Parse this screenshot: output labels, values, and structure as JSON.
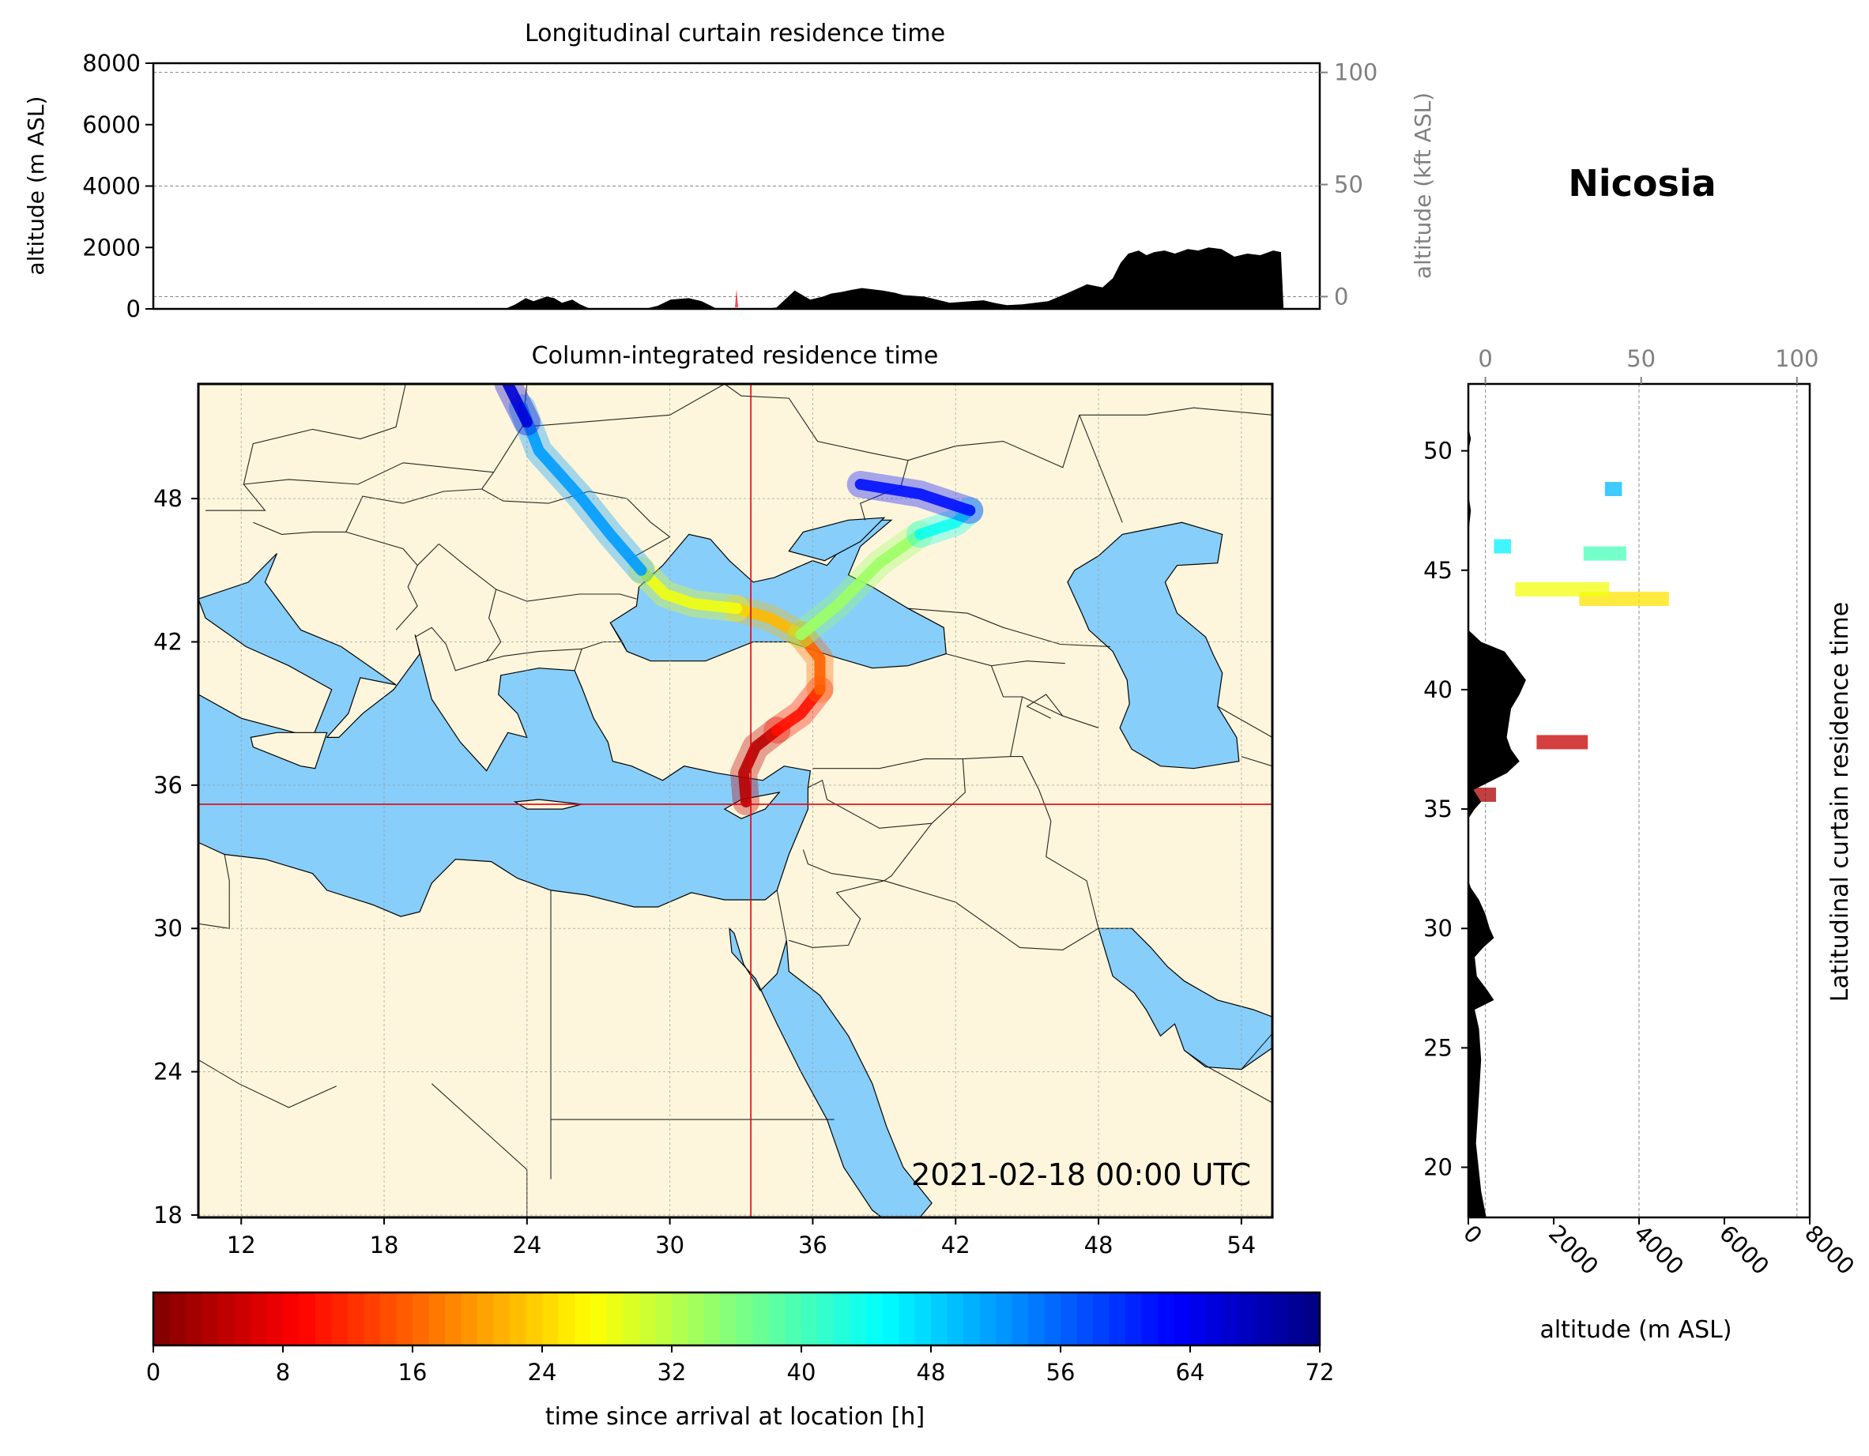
{
  "station": "Nicosia",
  "timestamp": "2021-02-18 00:00 UTC",
  "colors": {
    "ocean": "#87cefa",
    "land": "#fdf6dc",
    "terrain": "#000000",
    "marker": "#e8000b",
    "label_secondary": "#808080"
  },
  "chart_data": [
    {
      "id": "longitudinal-curtain",
      "type": "area",
      "title": "Longitudinal curtain residence time",
      "ylabel": "altitude (m ASL)",
      "ylabel_right": "altitude (kft ASL)",
      "ylim": [
        0,
        8000
      ],
      "yticks": [
        "0",
        "2000",
        "4000",
        "6000",
        "8000"
      ],
      "yticks_right": [
        "0",
        "50",
        "100"
      ],
      "xlim": [
        10.2,
        55.3
      ],
      "terrain": {
        "x": [
          10.2,
          23.8,
          24.2,
          24.6,
          24.9,
          25.4,
          25.7,
          26.0,
          26.4,
          26.7,
          27.1,
          29.2,
          29.7,
          30.2,
          30.9,
          31.4,
          32.0,
          32.5,
          33.2,
          33.9,
          34.3,
          35.0,
          35.6,
          36.1,
          36.4,
          36.8,
          37.2,
          37.6,
          38.4,
          38.9,
          39.2,
          40.0,
          40.5,
          41.0,
          41.8,
          42.3,
          42.7,
          43.2,
          43.8,
          44.3,
          44.8,
          45.5,
          46.3,
          46.9,
          47.3,
          47.6,
          47.9,
          48.3,
          48.6,
          48.9,
          49.3,
          49.7,
          50.2,
          50.6,
          51.0,
          51.5,
          52.0,
          52.5,
          53.0,
          53.5,
          53.8,
          53.9,
          55.3
        ],
        "y": [
          0,
          0,
          150,
          350,
          250,
          400,
          350,
          200,
          300,
          150,
          0,
          0,
          100,
          300,
          350,
          250,
          0,
          0,
          0,
          0,
          50,
          600,
          300,
          400,
          500,
          550,
          620,
          680,
          600,
          520,
          450,
          400,
          300,
          200,
          250,
          280,
          200,
          120,
          150,
          200,
          250,
          500,
          800,
          700,
          1000,
          1500,
          1800,
          1900,
          1750,
          1850,
          1900,
          1800,
          1950,
          1900,
          2000,
          1950,
          1700,
          1800,
          1750,
          1900,
          1850,
          0,
          0
        ]
      },
      "gridlines_m": [
        400,
        4000,
        7700
      ]
    },
    {
      "id": "column-integrated-map",
      "type": "heatmap",
      "title": "Column-integrated residence time",
      "xlim": [
        10.2,
        55.3
      ],
      "ylim": [
        17.9,
        52.8
      ],
      "xticks": [
        "12",
        "18",
        "24",
        "30",
        "36",
        "42",
        "48",
        "54"
      ],
      "yticks": [
        "18",
        "24",
        "30",
        "36",
        "42",
        "48"
      ],
      "release_point": {
        "lon": 33.4,
        "lat": 35.2
      },
      "grid": true,
      "trajectory_bands": [
        {
          "time_h": 4,
          "points": [
            [
              33.2,
              35.3
            ],
            [
              33.1,
              36.5
            ],
            [
              33.6,
              37.6
            ],
            [
              34.5,
              38.3
            ]
          ]
        },
        {
          "time_h": 10,
          "points": [
            [
              34.5,
              38.3
            ],
            [
              35.5,
              39.0
            ],
            [
              36.3,
              40.0
            ]
          ]
        },
        {
          "time_h": 16,
          "points": [
            [
              36.3,
              40.0
            ],
            [
              36.3,
              41.3
            ],
            [
              35.5,
              42.3
            ]
          ]
        },
        {
          "time_h": 22,
          "points": [
            [
              35.5,
              42.3
            ],
            [
              34.2,
              43.0
            ],
            [
              32.8,
              43.4
            ]
          ]
        },
        {
          "time_h": 28,
          "points": [
            [
              32.8,
              43.4
            ],
            [
              31.0,
              43.6
            ],
            [
              29.8,
              44.0
            ],
            [
              28.8,
              45.0
            ]
          ]
        },
        {
          "time_h": 34,
          "points": [
            [
              35.5,
              42.3
            ],
            [
              37.0,
              43.5
            ],
            [
              38.8,
              45.3
            ],
            [
              40.5,
              46.5
            ]
          ]
        },
        {
          "time_h": 44,
          "points": [
            [
              40.5,
              46.5
            ],
            [
              42.0,
              47.0
            ],
            [
              42.6,
              47.5
            ]
          ]
        },
        {
          "time_h": 52,
          "points": [
            [
              28.8,
              45.0
            ],
            [
              27.5,
              46.5
            ],
            [
              26.3,
              48.0
            ],
            [
              24.5,
              50.0
            ],
            [
              23.8,
              51.8
            ]
          ]
        },
        {
          "time_h": 62,
          "points": [
            [
              42.6,
              47.5
            ],
            [
              40.5,
              48.2
            ],
            [
              38.0,
              48.6
            ]
          ]
        },
        {
          "time_h": 66,
          "points": [
            [
              24.0,
              51.2
            ],
            [
              23.2,
              52.8
            ]
          ]
        }
      ]
    },
    {
      "id": "latitudinal-curtain",
      "type": "area",
      "title": "Latitudinal curtain residence time",
      "xlabel": "altitude (m ASL)",
      "xlabel_top": "",
      "xlim": [
        0,
        8000
      ],
      "xticks": [
        "0",
        "2000",
        "4000",
        "6000",
        "8000"
      ],
      "xticks_top": [
        "0",
        "50",
        "100"
      ],
      "ylim": [
        17.9,
        52.8
      ],
      "yticks": [
        "20",
        "25",
        "30",
        "35",
        "40",
        "45",
        "50"
      ],
      "terrain": {
        "lat": [
          17.9,
          19.0,
          21.0,
          23.0,
          24.5,
          25.8,
          26.6,
          27.0,
          27.4,
          28.0,
          28.8,
          29.2,
          29.6,
          30.0,
          30.6,
          31.2,
          31.7,
          32.0,
          33.0,
          34.6,
          35.0,
          35.3,
          35.8,
          36.5,
          37.0,
          37.5,
          38.0,
          38.6,
          39.2,
          39.8,
          40.4,
          41.0,
          41.6,
          42.0,
          42.5,
          44.0,
          46.5,
          47.5,
          48.2,
          50.0,
          50.5,
          51.0,
          52.8
        ],
        "alt": [
          420,
          300,
          180,
          250,
          300,
          250,
          150,
          600,
          450,
          200,
          150,
          350,
          600,
          500,
          400,
          250,
          60,
          0,
          0,
          0,
          150,
          300,
          120,
          900,
          1200,
          1000,
          900,
          950,
          1000,
          1200,
          1350,
          1100,
          850,
          300,
          0,
          0,
          0,
          60,
          0,
          0,
          60,
          0,
          0
        ]
      },
      "residence_bars": [
        {
          "lat": 37.8,
          "alt_from": 1600,
          "alt_to": 2800,
          "time_h": 5
        },
        {
          "lat": 35.6,
          "alt_from": 50,
          "alt_to": 650,
          "time_h": 3
        },
        {
          "lat": 43.8,
          "alt_from": 2600,
          "alt_to": 4700,
          "time_h": 25
        },
        {
          "lat": 44.2,
          "alt_from": 1100,
          "alt_to": 3300,
          "time_h": 28
        },
        {
          "lat": 45.7,
          "alt_from": 2700,
          "alt_to": 3700,
          "time_h": 40
        },
        {
          "lat": 46.0,
          "alt_from": 600,
          "alt_to": 1000,
          "time_h": 46
        },
        {
          "lat": 48.4,
          "alt_from": 3200,
          "alt_to": 3600,
          "time_h": 50
        }
      ],
      "gridlines_m": [
        400,
        4000,
        7700
      ]
    },
    {
      "id": "time-colorbar",
      "type": "heatmap",
      "xlabel": "time since arrival at location [h]",
      "range": [
        0,
        72
      ],
      "ticks": [
        "0",
        "8",
        "16",
        "24",
        "32",
        "40",
        "48",
        "56",
        "64",
        "72"
      ],
      "colormap": "jet_r"
    }
  ]
}
